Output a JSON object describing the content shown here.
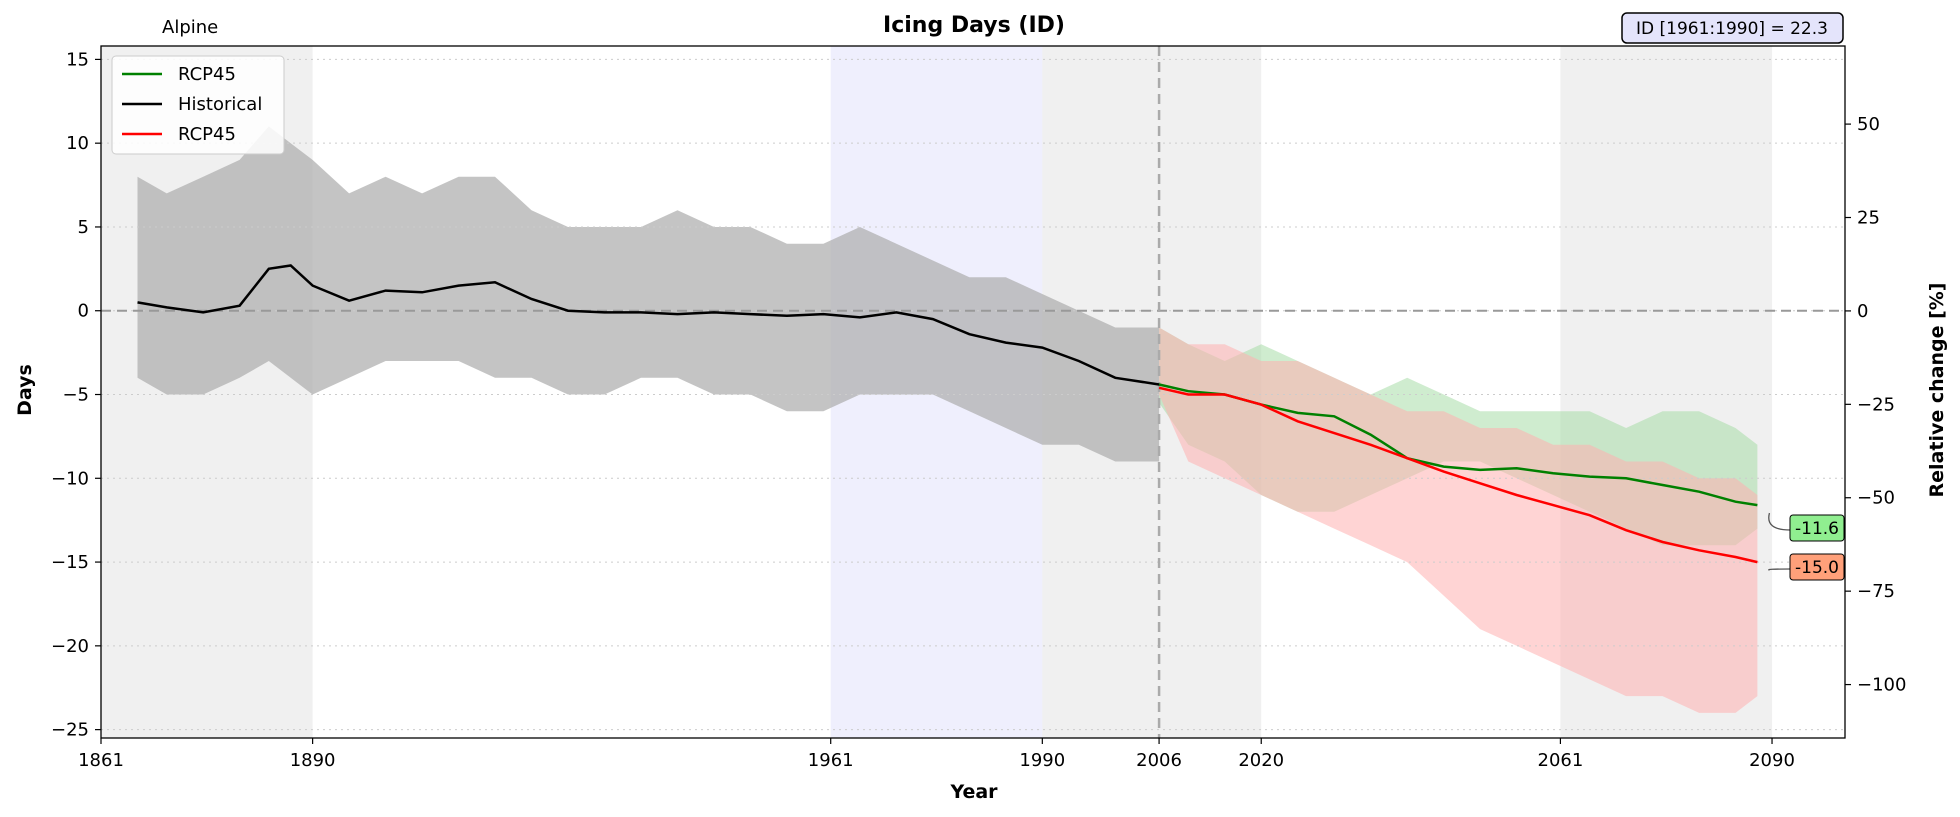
{
  "chart_data": {
    "type": "line",
    "title": "Icing Days (ID)",
    "region_label": "Alpine",
    "baseline_box": "ID [1961:1990] = 22.3",
    "xlabel": "Year",
    "ylabel": "Days",
    "y2label": "Relative change [%]",
    "xlim": [
      1861,
      2100
    ],
    "ylim": [
      -25.5,
      15.8
    ],
    "y2lim": [
      -114.3,
      70.9
    ],
    "x_ticks": [
      1861,
      1890,
      1961,
      1990,
      2006,
      2020,
      2061,
      2090
    ],
    "y_ticks": [
      15,
      10,
      5,
      0,
      -5,
      -10,
      -15,
      -20,
      -25
    ],
    "y_tick_labels": [
      "15",
      "10",
      "5",
      "0",
      "−5",
      "−10",
      "−15",
      "−20",
      "−25"
    ],
    "y2_ticks": [
      50,
      25,
      0,
      -25,
      -50,
      -75,
      -100
    ],
    "y2_tick_labels": [
      "50",
      "25",
      "0",
      "−25",
      "−50",
      "−75",
      "−100"
    ],
    "grid": "horizontal dotted",
    "legend_position": "top-left",
    "shaded_periods": [
      {
        "start": 1861,
        "end": 1890,
        "color": "#e6e6e6"
      },
      {
        "start": 1961,
        "end": 1990,
        "color": "#e4e4fb"
      },
      {
        "start": 1990,
        "end": 2020,
        "color": "#e6e6e6"
      },
      {
        "start": 2061,
        "end": 2090,
        "color": "#e6e6e6"
      }
    ],
    "reference_year": 2006,
    "series": [
      {
        "name": "RCP45",
        "color": "#008000",
        "years": [
          2006,
          2010,
          2015,
          2020,
          2025,
          2030,
          2035,
          2040,
          2045,
          2050,
          2055,
          2060,
          2065,
          2070,
          2075,
          2080,
          2085,
          2088
        ],
        "values": [
          -4.4,
          -4.8,
          -5.0,
          -5.6,
          -6.1,
          -6.3,
          -7.4,
          -8.8,
          -9.3,
          -9.5,
          -9.4,
          -9.7,
          -9.9,
          -10.0,
          -10.4,
          -10.8,
          -11.4,
          -11.6
        ],
        "band_lower": [
          -5.5,
          -8,
          -9,
          -11,
          -12,
          -12,
          -11,
          -10,
          -9,
          -9,
          -10,
          -11,
          -12,
          -13,
          -14,
          -14,
          -14,
          -13
        ],
        "band_upper": [
          -1,
          -2,
          -3,
          -2,
          -3,
          -4,
          -5,
          -4,
          -5,
          -6,
          -6,
          -6,
          -6,
          -7,
          -6,
          -6,
          -7,
          -8
        ],
        "end_label": "-11.6",
        "end_label_color": "#90ee90"
      },
      {
        "name": "Historical",
        "color": "#000000",
        "years": [
          1866,
          1870,
          1875,
          1880,
          1884,
          1887,
          1890,
          1895,
          1900,
          1905,
          1910,
          1915,
          1920,
          1925,
          1930,
          1935,
          1940,
          1945,
          1950,
          1955,
          1960,
          1965,
          1970,
          1975,
          1980,
          1985,
          1990,
          1995,
          2000,
          2006
        ],
        "values": [
          0.5,
          0.2,
          -0.1,
          0.3,
          2.5,
          2.7,
          1.5,
          0.6,
          1.2,
          1.1,
          1.5,
          1.7,
          0.7,
          0.0,
          -0.1,
          -0.1,
          -0.2,
          -0.1,
          -0.2,
          -0.3,
          -0.2,
          -0.4,
          -0.1,
          -0.5,
          -1.4,
          -1.9,
          -2.2,
          -3.0,
          -4.0,
          -4.4
        ],
        "band_lower": [
          -4,
          -5,
          -5,
          -4,
          -3,
          -4,
          -5,
          -4,
          -3,
          -3,
          -3,
          -4,
          -4,
          -5,
          -5,
          -4,
          -4,
          -5,
          -5,
          -6,
          -6,
          -5,
          -5,
          -5,
          -6,
          -7,
          -8,
          -8,
          -9,
          -9
        ],
        "band_upper": [
          8,
          7,
          8,
          9,
          11,
          10,
          9,
          7,
          8,
          7,
          8,
          8,
          6,
          5,
          5,
          5,
          6,
          5,
          5,
          4,
          4,
          5,
          4,
          3,
          2,
          2,
          1,
          0,
          -1,
          -1
        ]
      },
      {
        "name": "RCP45",
        "color": "#ff0000",
        "years": [
          2006,
          2010,
          2015,
          2020,
          2025,
          2030,
          2035,
          2040,
          2045,
          2050,
          2055,
          2060,
          2065,
          2070,
          2075,
          2080,
          2085,
          2088
        ],
        "values": [
          -4.6,
          -5.0,
          -5.0,
          -5.6,
          -6.6,
          -7.3,
          -8.0,
          -8.8,
          -9.6,
          -10.3,
          -11.0,
          -11.6,
          -12.2,
          -13.1,
          -13.8,
          -14.3,
          -14.7,
          -15.0
        ],
        "band_lower": [
          -5,
          -9,
          -10,
          -11,
          -12,
          -13,
          -14,
          -15,
          -17,
          -19,
          -20,
          -21,
          -22,
          -23,
          -23,
          -24,
          -24,
          -23
        ],
        "band_upper": [
          -1,
          -2,
          -2,
          -3,
          -3,
          -4,
          -5,
          -6,
          -6,
          -7,
          -7,
          -8,
          -8,
          -9,
          -9,
          -10,
          -10,
          -11
        ],
        "end_label": "-15.0",
        "end_label_color": "#ffa07a"
      }
    ],
    "legend": [
      {
        "label": "RCP45",
        "color": "#008000"
      },
      {
        "label": "Historical",
        "color": "#000000"
      },
      {
        "label": "RCP45",
        "color": "#ff0000"
      }
    ]
  }
}
